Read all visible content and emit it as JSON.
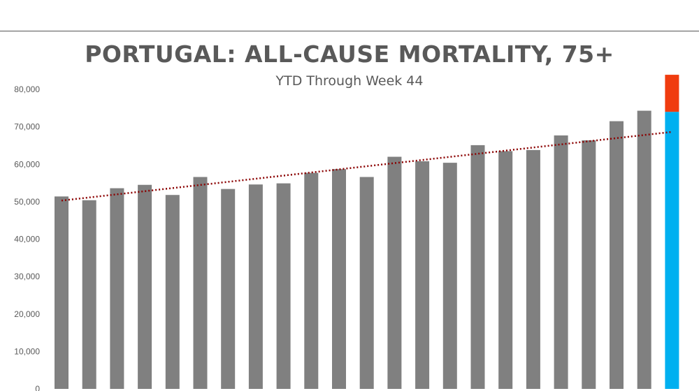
{
  "chart_data": {
    "type": "bar",
    "title": "PORTUGAL: ALL-CAUSE MORTALITY, 75+",
    "subtitle": "YTD Through Week 44",
    "xlabel": "",
    "ylabel": "",
    "ylim": [
      0,
      80000
    ],
    "yticks": [
      0,
      10000,
      20000,
      30000,
      40000,
      50000,
      60000,
      70000,
      80000
    ],
    "ytick_labels": [
      "0",
      "10,000",
      "20,000",
      "30,000",
      "40,000",
      "50,000",
      "60,000",
      "70,000",
      "80,000"
    ],
    "grid": false,
    "legend": null,
    "values": [
      51400,
      50400,
      53600,
      54500,
      51800,
      56600,
      53400,
      54600,
      54900,
      57700,
      58700,
      56600,
      62000,
      60800,
      60400,
      65100,
      63500,
      63800,
      67700,
      66400,
      71500,
      74300
    ],
    "last_bar": {
      "base": 74000,
      "excess": 9900
    },
    "trendline": {
      "style": "dotted",
      "start": 50300,
      "end": 68600
    },
    "colors": {
      "bars": "#808080",
      "last_bar_base": "#00b0f0",
      "last_bar_excess": "#f03c0f",
      "trendline": "#8b0000",
      "title": "#595959"
    }
  }
}
